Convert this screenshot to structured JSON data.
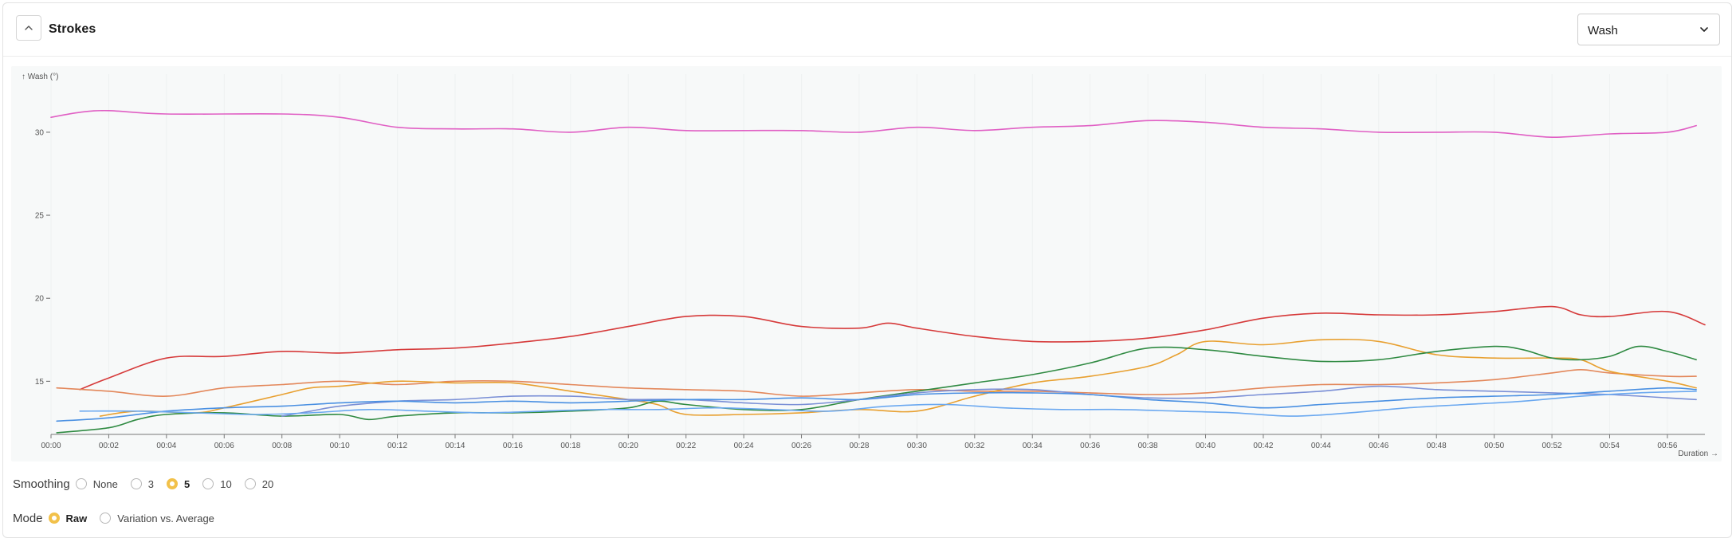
{
  "panel": {
    "title": "Strokes",
    "metric_select": {
      "value": "Wash"
    }
  },
  "chart_data": {
    "type": "line",
    "ylabel": "↑ Wash (°)",
    "xlabel": "Duration →",
    "ylim": [
      11.8,
      33.5
    ],
    "xlim": [
      0,
      57.3
    ],
    "y_ticks": [
      "15",
      "20",
      "25",
      "30"
    ],
    "x_ticks": [
      "00:00",
      "00:02",
      "00:04",
      "00:06",
      "00:08",
      "00:10",
      "00:12",
      "00:14",
      "00:16",
      "00:18",
      "00:20",
      "00:22",
      "00:24",
      "00:26",
      "00:28",
      "00:30",
      "00:32",
      "00:34",
      "00:36",
      "00:38",
      "00:40",
      "00:42",
      "00:44",
      "00:46",
      "00:48",
      "00:50",
      "00:52",
      "00:54",
      "00:56"
    ],
    "grid": true,
    "series": [
      {
        "color": "#e05fc4",
        "x": [
          0,
          1,
          2,
          4,
          8,
          10,
          12,
          14,
          16,
          18,
          20,
          22,
          24,
          26,
          28,
          30,
          32,
          34,
          36,
          38,
          40,
          42,
          44,
          46,
          48,
          50,
          52,
          54,
          56,
          57
        ],
        "values": [
          30.9,
          31.2,
          31.3,
          31.1,
          31.1,
          30.9,
          30.3,
          30.2,
          30.2,
          30.0,
          30.3,
          30.1,
          30.1,
          30.1,
          30.0,
          30.3,
          30.1,
          30.3,
          30.4,
          30.7,
          30.6,
          30.3,
          30.2,
          30.0,
          30.0,
          30.0,
          29.7,
          29.9,
          30.0,
          30.4
        ]
      },
      {
        "color": "#d63a3a",
        "x": [
          1,
          2,
          4,
          6,
          8,
          10,
          12,
          14,
          16,
          18,
          20,
          22,
          24,
          26,
          28,
          29,
          30,
          32,
          34,
          36,
          38,
          40,
          42,
          44,
          46,
          48,
          50,
          52,
          53,
          54,
          56,
          57.3
        ],
        "values": [
          14.5,
          15.2,
          16.4,
          16.5,
          16.8,
          16.7,
          16.9,
          17.0,
          17.3,
          17.7,
          18.3,
          18.9,
          18.9,
          18.3,
          18.2,
          18.5,
          18.2,
          17.7,
          17.4,
          17.4,
          17.6,
          18.1,
          18.8,
          19.1,
          19.0,
          19.0,
          19.2,
          19.5,
          19.0,
          18.9,
          19.2,
          18.4
        ]
      },
      {
        "color": "#e3875a",
        "x": [
          0.2,
          2,
          4,
          6,
          8,
          10,
          12,
          14,
          16,
          18,
          20,
          22,
          24,
          26,
          28,
          30,
          32,
          34,
          36,
          38,
          40,
          42,
          44,
          46,
          48,
          50,
          52,
          53,
          54,
          56,
          57
        ],
        "values": [
          14.6,
          14.4,
          14.1,
          14.6,
          14.8,
          15.0,
          14.8,
          15.0,
          15.0,
          14.8,
          14.6,
          14.5,
          14.4,
          14.1,
          14.3,
          14.5,
          14.4,
          14.4,
          14.3,
          14.2,
          14.3,
          14.6,
          14.8,
          14.8,
          14.9,
          15.1,
          15.5,
          15.7,
          15.5,
          15.3,
          15.3
        ]
      },
      {
        "color": "#e8a030",
        "x": [
          1.7,
          3,
          5,
          6,
          8,
          9,
          10,
          12,
          14,
          16,
          18,
          20,
          21,
          22,
          24,
          26,
          28,
          30,
          32,
          34,
          36,
          38,
          39,
          40,
          42,
          44,
          46,
          48,
          50,
          52,
          53,
          54,
          56,
          57
        ],
        "values": [
          12.9,
          13.2,
          13.1,
          13.4,
          14.2,
          14.6,
          14.7,
          15.0,
          14.9,
          14.9,
          14.4,
          13.9,
          13.6,
          13.0,
          13.0,
          13.1,
          13.3,
          13.2,
          14.1,
          14.9,
          15.3,
          15.9,
          16.6,
          17.4,
          17.2,
          17.5,
          17.4,
          16.6,
          16.4,
          16.4,
          16.3,
          15.6,
          15.0,
          14.6
        ]
      },
      {
        "color": "#2f8a42",
        "x": [
          0.2,
          2,
          3,
          4,
          6,
          8,
          10,
          11,
          12,
          14,
          16,
          18,
          20,
          21,
          22,
          24,
          26,
          28,
          30,
          32,
          34,
          36,
          38,
          40,
          42,
          44,
          46,
          48,
          50,
          51,
          52,
          53,
          54,
          55,
          56,
          57
        ],
        "values": [
          11.9,
          12.2,
          12.7,
          13.0,
          13.1,
          12.9,
          13.0,
          12.7,
          12.9,
          13.1,
          13.1,
          13.2,
          13.4,
          13.8,
          13.6,
          13.3,
          13.3,
          13.9,
          14.4,
          14.9,
          15.4,
          16.1,
          17.0,
          16.9,
          16.5,
          16.2,
          16.3,
          16.8,
          17.1,
          16.9,
          16.4,
          16.3,
          16.5,
          17.1,
          16.8,
          16.3
        ]
      },
      {
        "color": "#7a8fd6",
        "x": [
          8,
          9,
          10,
          12,
          14,
          16,
          18,
          19,
          20,
          22,
          24,
          26,
          28,
          30,
          32,
          34,
          36,
          38,
          40,
          42,
          44,
          46,
          48,
          50,
          52,
          54,
          56,
          57
        ],
        "values": [
          12.9,
          13.2,
          13.5,
          13.8,
          13.9,
          14.1,
          14.1,
          14.0,
          13.9,
          13.9,
          13.7,
          13.6,
          13.9,
          14.3,
          14.5,
          14.5,
          14.2,
          14.0,
          14.0,
          14.2,
          14.4,
          14.7,
          14.5,
          14.4,
          14.3,
          14.2,
          14.0,
          13.9
        ]
      },
      {
        "color": "#4a90e2",
        "x": [
          0.2,
          2,
          4,
          6,
          8,
          10,
          12,
          14,
          16,
          18,
          20,
          22,
          24,
          26,
          28,
          30,
          32,
          34,
          36,
          38,
          40,
          42,
          44,
          46,
          48,
          50,
          52,
          54,
          56,
          57
        ],
        "values": [
          12.6,
          12.8,
          13.2,
          13.4,
          13.5,
          13.7,
          13.8,
          13.7,
          13.8,
          13.7,
          13.8,
          13.9,
          13.9,
          14.0,
          13.9,
          14.2,
          14.3,
          14.3,
          14.2,
          13.9,
          13.7,
          13.4,
          13.6,
          13.8,
          14.0,
          14.1,
          14.2,
          14.4,
          14.6,
          14.5
        ]
      },
      {
        "color": "#6aa8f0",
        "x": [
          1,
          3,
          5,
          7,
          9,
          11,
          13,
          15,
          17,
          19,
          21,
          23,
          25,
          27,
          29,
          31,
          33,
          35,
          37,
          39,
          41,
          43,
          45,
          47,
          49,
          51,
          53,
          55,
          57
        ],
        "values": [
          13.2,
          13.2,
          13.1,
          13.0,
          13.1,
          13.3,
          13.2,
          13.1,
          13.2,
          13.3,
          13.3,
          13.4,
          13.3,
          13.2,
          13.5,
          13.6,
          13.4,
          13.3,
          13.3,
          13.2,
          13.1,
          12.9,
          13.1,
          13.4,
          13.6,
          13.8,
          14.1,
          14.3,
          14.4
        ]
      }
    ]
  },
  "controls": {
    "smoothing": {
      "label": "Smoothing",
      "options": [
        {
          "label": "None",
          "checked": false
        },
        {
          "label": "3",
          "checked": false
        },
        {
          "label": "5",
          "checked": true
        },
        {
          "label": "10",
          "checked": false
        },
        {
          "label": "20",
          "checked": false
        }
      ]
    },
    "mode": {
      "label": "Mode",
      "options": [
        {
          "label": "Raw",
          "checked": true
        },
        {
          "label": "Variation vs. Average",
          "checked": false
        }
      ]
    }
  }
}
